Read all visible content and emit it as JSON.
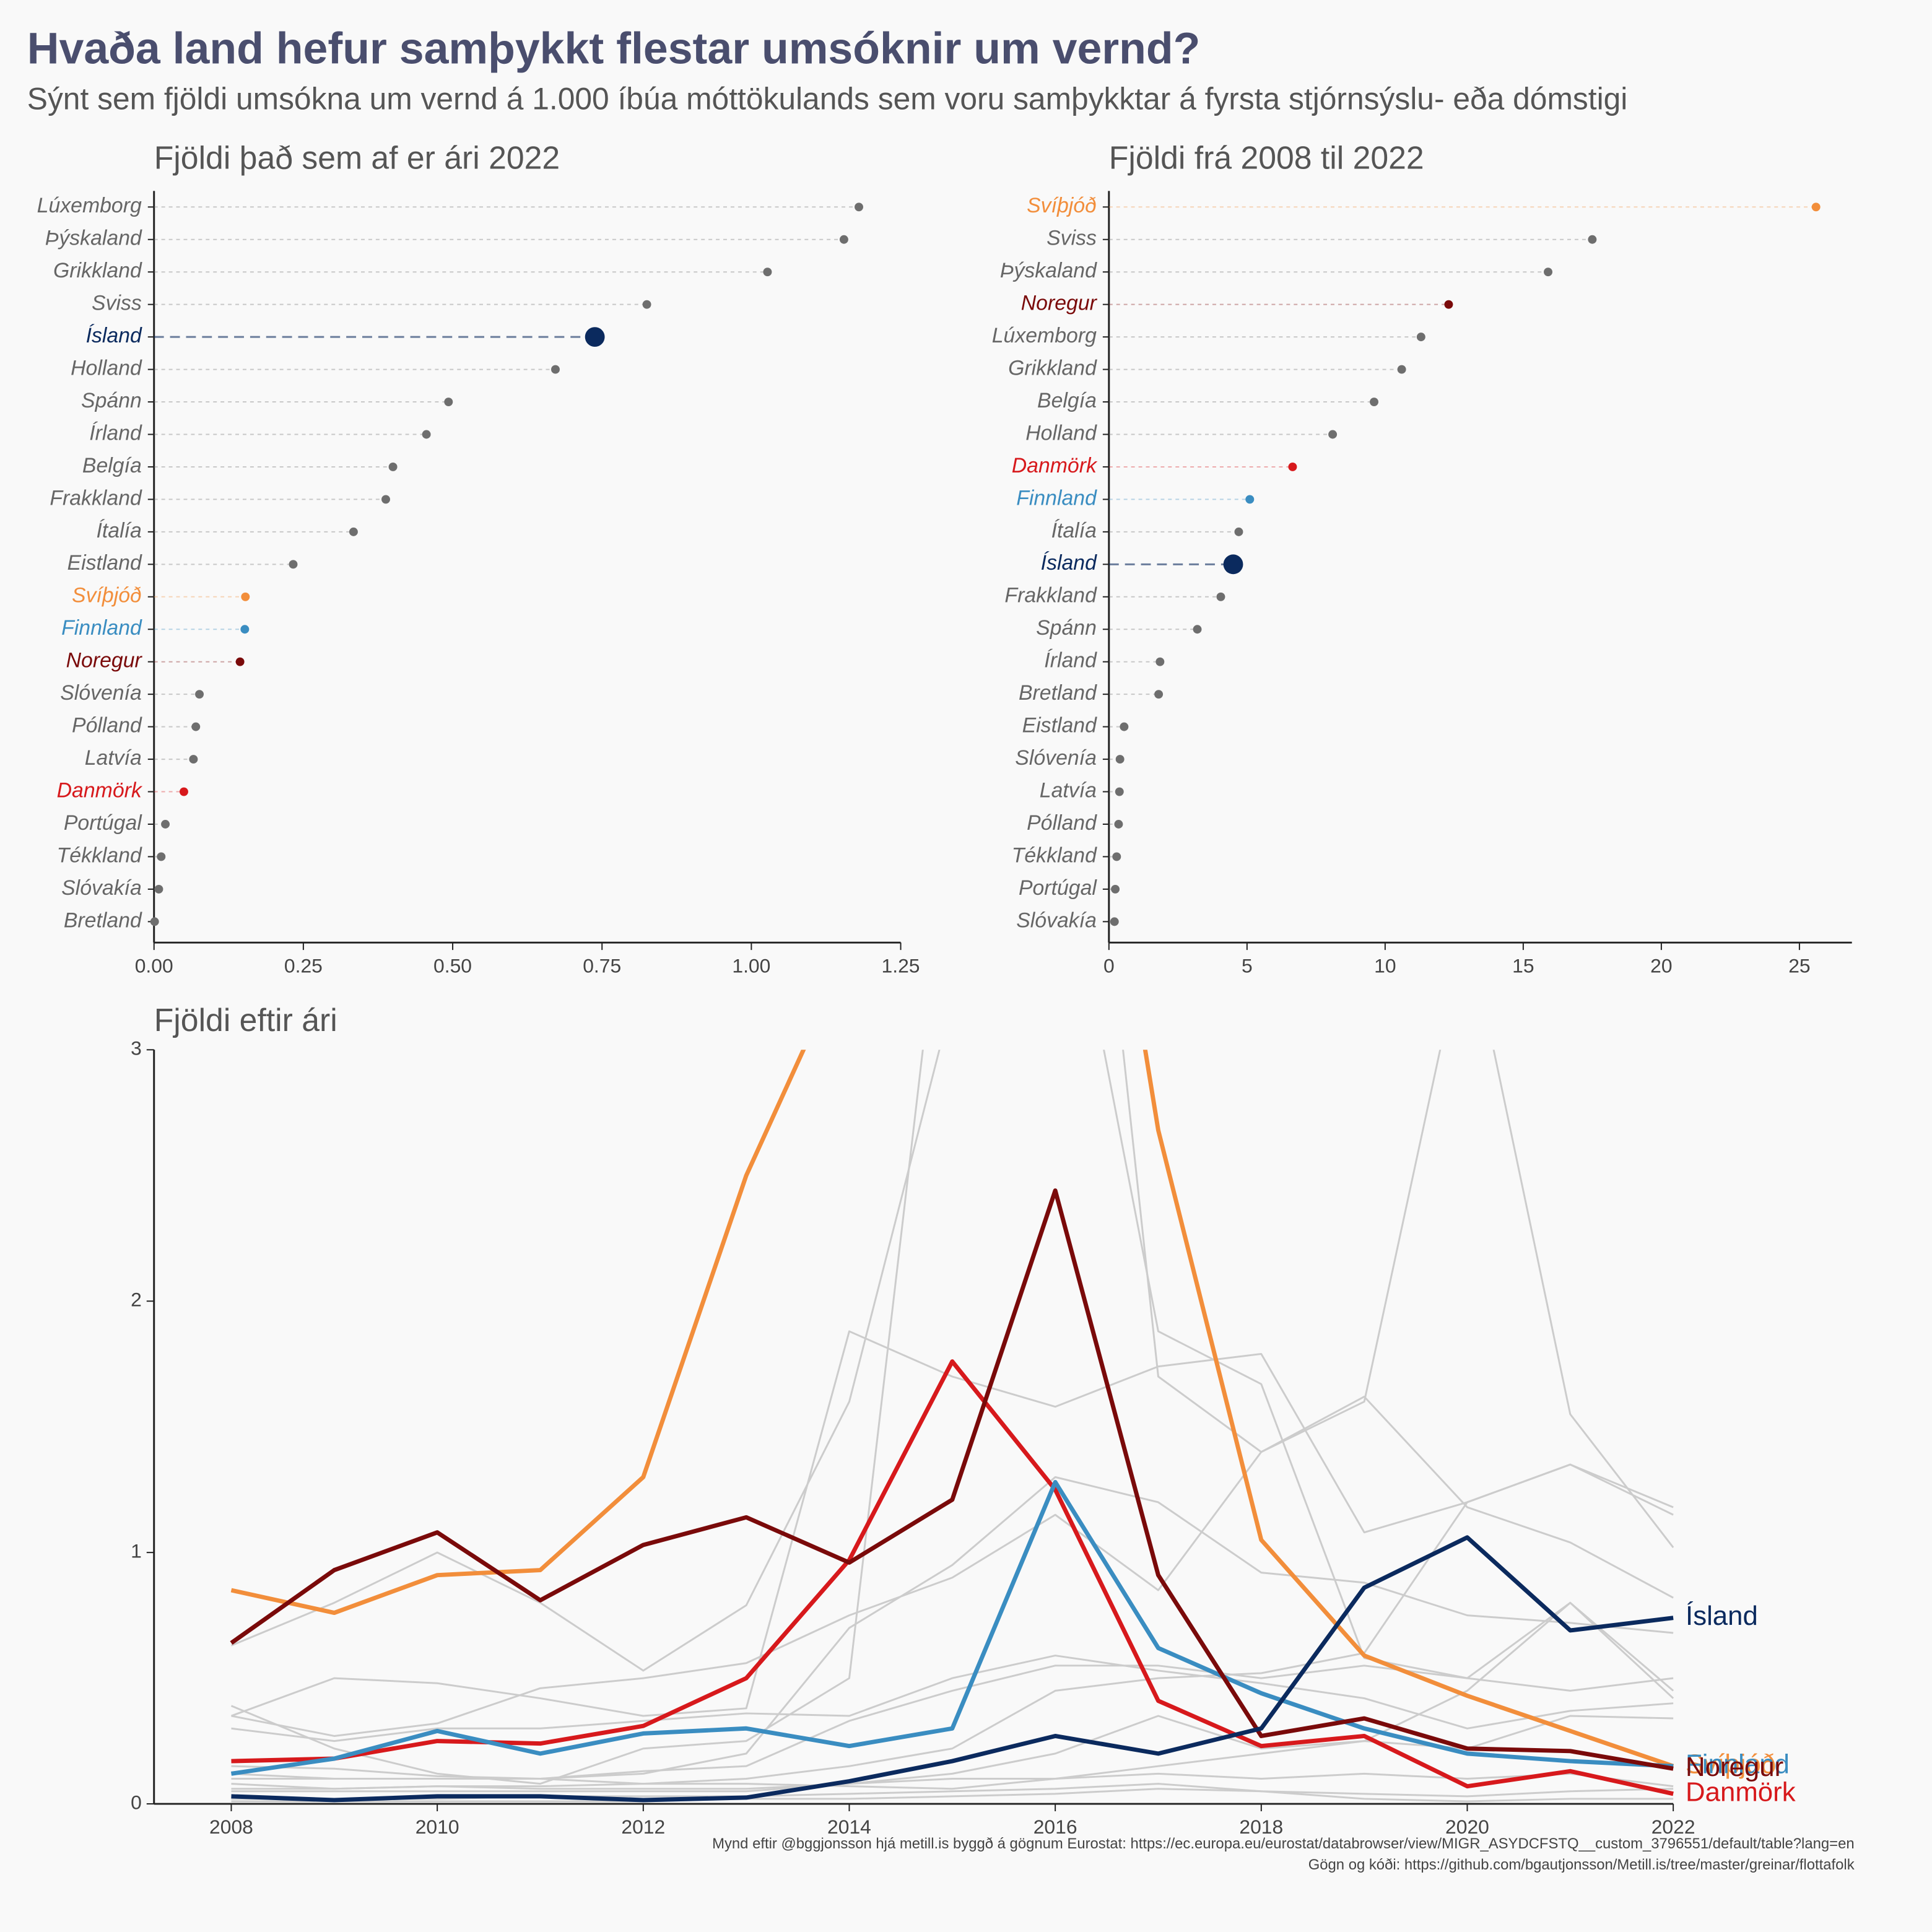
{
  "header": {
    "title": "Hvaða land hefur samþykkt flestar umsóknir um vernd?",
    "subtitle": "Sýnt sem fjöldi umsókna um vernd á 1.000 íbúa móttökulands sem voru samþykktar á fyrsta stjórnsýslu- eða dómstigi"
  },
  "chart_data": [
    {
      "type": "dot",
      "title": "Fjöldi það sem af er ári 2022",
      "categories": [
        "Lúxemborg",
        "Þýskaland",
        "Grikkland",
        "Sviss",
        "Ísland",
        "Holland",
        "Spánn",
        "Írland",
        "Belgía",
        "Frakkland",
        "Ítalía",
        "Eistland",
        "Svíþjóð",
        "Finnland",
        "Noregur",
        "Slóvenía",
        "Pólland",
        "Latvía",
        "Danmörk",
        "Portúgal",
        "Tékkland",
        "Slóvakía",
        "Bretland"
      ],
      "values": [
        1.18,
        1.155,
        1.027,
        0.825,
        0.738,
        0.672,
        0.493,
        0.456,
        0.4,
        0.388,
        0.334,
        0.233,
        0.153,
        0.152,
        0.144,
        0.076,
        0.07,
        0.066,
        0.05,
        0.019,
        0.012,
        0.008,
        0.001
      ],
      "colors": [
        "#6e6e6e",
        "#6e6e6e",
        "#6e6e6e",
        "#6e6e6e",
        "#0b2a5e",
        "#6e6e6e",
        "#6e6e6e",
        "#6e6e6e",
        "#6e6e6e",
        "#6e6e6e",
        "#6e6e6e",
        "#6e6e6e",
        "#f28e3b",
        "#3a8dc1",
        "#7a0a0a",
        "#6e6e6e",
        "#6e6e6e",
        "#6e6e6e",
        "#d7191c",
        "#6e6e6e",
        "#6e6e6e",
        "#6e6e6e",
        "#6e6e6e"
      ],
      "highlight": "Ísland",
      "xlim": [
        0,
        1.25
      ],
      "xticks": [
        {
          "value": 0,
          "label": "0.00"
        },
        0.25,
        {
          "value": 0.5,
          "label": "0.50"
        },
        0.75,
        {
          "value": 1,
          "label": "1.00"
        },
        1.25
      ]
    },
    {
      "type": "dot",
      "title": "Fjöldi frá 2008 til 2022",
      "categories": [
        "Svíþjóð",
        "Sviss",
        "Þýskaland",
        "Noregur",
        "Lúxemborg",
        "Grikkland",
        "Belgía",
        "Holland",
        "Danmörk",
        "Finnland",
        "Ítalía",
        "Ísland",
        "Frakkland",
        "Spánn",
        "Írland",
        "Bretland",
        "Eistland",
        "Slóvenía",
        "Latvía",
        "Pólland",
        "Tékkland",
        "Portúgal",
        "Slóvakía"
      ],
      "values": [
        25.6,
        17.5,
        15.9,
        12.3,
        11.3,
        10.6,
        9.6,
        8.1,
        6.65,
        5.1,
        4.7,
        4.5,
        4.05,
        3.2,
        1.85,
        1.8,
        0.55,
        0.4,
        0.38,
        0.35,
        0.28,
        0.23,
        0.2
      ],
      "colors": [
        "#f28e3b",
        "#6e6e6e",
        "#6e6e6e",
        "#7a0a0a",
        "#6e6e6e",
        "#6e6e6e",
        "#6e6e6e",
        "#6e6e6e",
        "#d7191c",
        "#3a8dc1",
        "#6e6e6e",
        "#0b2a5e",
        "#6e6e6e",
        "#6e6e6e",
        "#6e6e6e",
        "#6e6e6e",
        "#6e6e6e",
        "#6e6e6e",
        "#6e6e6e",
        "#6e6e6e",
        "#6e6e6e",
        "#6e6e6e",
        "#6e6e6e"
      ],
      "highlight": "Ísland",
      "xlim": [
        0,
        26.9
      ],
      "xticks": [
        0,
        5,
        10,
        15,
        20,
        25
      ]
    },
    {
      "type": "line",
      "title": "Fjöldi eftir ári",
      "x": [
        2008,
        2009,
        2010,
        2011,
        2012,
        2013,
        2014,
        2015,
        2016,
        2017,
        2018,
        2019,
        2020,
        2021,
        2022
      ],
      "series": [
        {
          "color": "#cccccc",
          "values": [
            0.35,
            0.5,
            0.48,
            0.42,
            0.35,
            0.38,
            1.88,
            1.7,
            1.58,
            1.74,
            1.79,
            1.08,
            1.2,
            1.35,
            1.18
          ]
        },
        {
          "color": "#cccccc",
          "values": [
            0.39,
            0.22,
            0.12,
            0.08,
            0.22,
            0.25,
            0.5,
            4.0,
            5.5,
            1.7,
            1.4,
            1.6,
            3.5,
            1.55,
            1.02
          ]
        },
        {
          "color": "#cccccc",
          "values": [
            0.63,
            0.8,
            1.0,
            0.8,
            0.53,
            0.79,
            1.6,
            3.2,
            4.0,
            1.88,
            1.67,
            0.58,
            0.5,
            0.8,
            0.42
          ]
        },
        {
          "color": "#cccccc",
          "values": [
            0.12,
            0.1,
            0.1,
            0.1,
            0.12,
            0.2,
            0.7,
            0.95,
            1.3,
            1.2,
            0.92,
            0.88,
            0.75,
            0.72,
            0.68
          ]
        },
        {
          "color": "#cccccc",
          "values": [
            0.35,
            0.27,
            0.32,
            0.46,
            0.5,
            0.56,
            0.75,
            0.9,
            1.15,
            0.85,
            1.4,
            1.62,
            1.18,
            1.04,
            0.82
          ]
        },
        {
          "color": "#cccccc",
          "values": [
            0.3,
            0.25,
            0.3,
            0.3,
            0.33,
            0.36,
            0.35,
            0.5,
            0.59,
            0.53,
            0.48,
            0.42,
            0.3,
            0.37,
            0.4
          ]
        },
        {
          "color": "#cccccc",
          "values": [
            0.15,
            0.14,
            0.11,
            0.1,
            0.13,
            0.15,
            0.33,
            0.45,
            0.55,
            0.55,
            0.5,
            0.55,
            0.5,
            0.45,
            0.5
          ]
        },
        {
          "color": "#cccccc",
          "values": [
            0.08,
            0.06,
            0.07,
            0.07,
            0.08,
            0.1,
            0.15,
            0.22,
            0.45,
            0.5,
            0.52,
            0.6,
            1.2,
            1.35,
            1.15
          ]
        },
        {
          "color": "#cccccc",
          "values": [
            0.05,
            0.05,
            0.05,
            0.05,
            0.05,
            0.05,
            0.08,
            0.12,
            0.2,
            0.35,
            0.22,
            0.25,
            0.45,
            0.8,
            0.45
          ]
        },
        {
          "color": "#cccccc",
          "values": [
            0.1,
            0.1,
            0.1,
            0.1,
            0.08,
            0.08,
            0.07,
            0.06,
            0.1,
            0.12,
            0.1,
            0.12,
            0.1,
            0.12,
            0.07
          ]
        },
        {
          "color": "#cccccc",
          "values": [
            0.02,
            0.02,
            0.02,
            0.03,
            0.03,
            0.03,
            0.04,
            0.05,
            0.06,
            0.08,
            0.05,
            0.04,
            0.03,
            0.05,
            0.06
          ]
        },
        {
          "color": "#cccccc",
          "values": [
            0.01,
            0.01,
            0.01,
            0.01,
            0.01,
            0.02,
            0.02,
            0.03,
            0.04,
            0.06,
            0.05,
            0.02,
            0.01,
            0.02,
            0.02
          ]
        },
        {
          "color": "#cccccc",
          "values": [
            0.06,
            0.06,
            0.07,
            0.06,
            0.06,
            0.06,
            0.08,
            0.1,
            0.1,
            0.15,
            0.2,
            0.25,
            0.22,
            0.35,
            0.34
          ]
        },
        {
          "name": "Svíþjóð",
          "color": "#f28e3b",
          "values": [
            0.85,
            0.76,
            0.91,
            0.93,
            1.3,
            2.5,
            3.4,
            4.6,
            5.2,
            2.68,
            1.05,
            0.59,
            0.43,
            0.29,
            0.15
          ]
        },
        {
          "name": "Danmörk",
          "color": "#d7191c",
          "values": [
            0.17,
            0.18,
            0.25,
            0.24,
            0.31,
            0.5,
            0.97,
            1.76,
            1.25,
            0.41,
            0.23,
            0.27,
            0.07,
            0.13,
            0.04
          ]
        },
        {
          "name": "Finnland",
          "color": "#3a8dc1",
          "values": [
            0.12,
            0.18,
            0.29,
            0.2,
            0.28,
            0.3,
            0.23,
            0.3,
            1.28,
            0.62,
            0.44,
            0.3,
            0.2,
            0.17,
            0.15
          ]
        },
        {
          "name": "Noregur",
          "color": "#7a0a0a",
          "values": [
            0.64,
            0.93,
            1.08,
            0.81,
            1.03,
            1.14,
            0.96,
            1.21,
            2.44,
            0.91,
            0.27,
            0.34,
            0.22,
            0.21,
            0.14
          ]
        },
        {
          "name": "Ísland",
          "color": "#0b2a5e",
          "values": [
            0.03,
            0.015,
            0.03,
            0.03,
            0.015,
            0.025,
            0.09,
            0.17,
            0.27,
            0.2,
            0.3,
            0.86,
            1.06,
            0.69,
            0.74
          ]
        }
      ],
      "xlim": [
        2007.25,
        2022
      ],
      "ylim": [
        0,
        3
      ],
      "xticks": [
        2008,
        2010,
        2012,
        2014,
        2016,
        2018,
        2020,
        2022
      ],
      "yticks": [
        0,
        1,
        2,
        3
      ]
    }
  ],
  "footer": {
    "lines": [
      "Mynd eftir @bggjonsson hjá metill.is byggð á gögnum Eurostat: https://ec.europa.eu/eurostat/databrowser/view/MIGR_ASYDCFSTQ__custom_3796551/default/table?lang=en",
      "Gögn og kóði: https://github.com/bgautjonsson/Metill.is/tree/master/greinar/flottafolk"
    ]
  }
}
